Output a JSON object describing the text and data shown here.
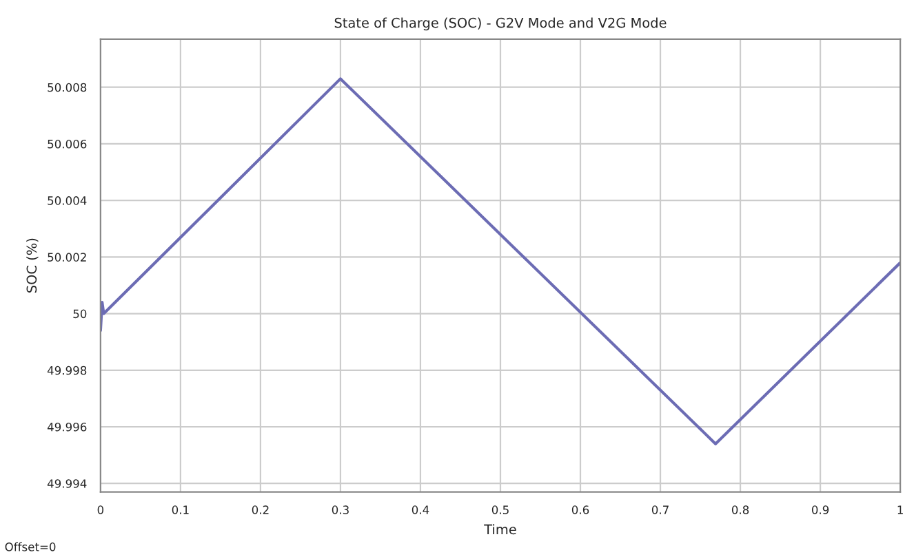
{
  "chart_data": {
    "type": "line",
    "title": "State of Charge (SOC) - G2V Mode and V2G Mode",
    "xlabel": "Time",
    "ylabel": "SOC (%)",
    "annotations": [
      "Offset=0"
    ],
    "series": [
      {
        "color": "#6c6cb4",
        "x": [
          0,
          0.002,
          0.004,
          0.3,
          0.769,
          1
        ],
        "values": [
          49.9994,
          50.0004,
          50.0,
          50.0083,
          49.9954,
          50.0018
        ]
      }
    ],
    "xlim": [
      0,
      1
    ],
    "xticks": [
      0,
      0.1,
      0.2,
      0.3,
      0.4,
      0.5,
      0.6,
      0.7,
      0.8,
      0.9,
      1
    ],
    "ylim": [
      49.9937,
      50.0097
    ],
    "yticks": [
      49.994,
      49.996,
      49.998,
      50,
      50.002,
      50.004,
      50.006,
      50.008
    ],
    "grid": true,
    "marker": "none",
    "line_style": "solid"
  }
}
